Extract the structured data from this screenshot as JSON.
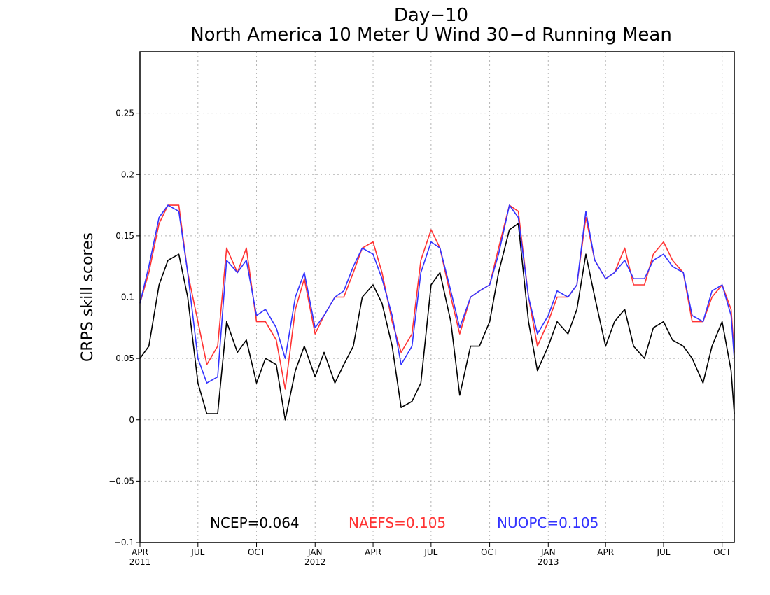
{
  "chart_data": {
    "type": "line",
    "title": "Day−10",
    "subtitle": "North America 10 Meter U Wind 30−d Running Mean",
    "ylabel": "CRPS skill scores",
    "xlabel": "",
    "ylim": [
      -0.1,
      0.3
    ],
    "yticks": [
      -0.1,
      -0.05,
      0,
      0.05,
      0.1,
      0.15,
      0.2,
      0.25
    ],
    "ytick_labels": [
      "−0.1",
      "−0.05",
      "0",
      "0.05",
      "0.1",
      "0.15",
      "0.2",
      "0.25"
    ],
    "xlim": [
      "2011-04-01",
      "2013-10-20"
    ],
    "xticks": [
      {
        "date": "2011-04-01",
        "label": "APR",
        "year": "2011"
      },
      {
        "date": "2011-07-01",
        "label": "JUL",
        "year": ""
      },
      {
        "date": "2011-10-01",
        "label": "OCT",
        "year": ""
      },
      {
        "date": "2012-01-01",
        "label": "JAN",
        "year": "2012"
      },
      {
        "date": "2012-04-01",
        "label": "APR",
        "year": ""
      },
      {
        "date": "2012-07-01",
        "label": "JUL",
        "year": ""
      },
      {
        "date": "2012-10-01",
        "label": "OCT",
        "year": ""
      },
      {
        "date": "2013-01-01",
        "label": "JAN",
        "year": "2013"
      },
      {
        "date": "2013-04-01",
        "label": "APR",
        "year": ""
      },
      {
        "date": "2013-07-01",
        "label": "JUL",
        "year": ""
      },
      {
        "date": "2013-10-01",
        "label": "OCT",
        "year": ""
      }
    ],
    "grid": true,
    "legend_position": "bottom",
    "x": [
      "2011-04-01",
      "2011-04-15",
      "2011-05-01",
      "2011-05-15",
      "2011-06-01",
      "2011-06-15",
      "2011-07-01",
      "2011-07-15",
      "2011-08-01",
      "2011-08-15",
      "2011-09-01",
      "2011-09-15",
      "2011-10-01",
      "2011-10-15",
      "2011-11-01",
      "2011-11-15",
      "2011-12-01",
      "2011-12-15",
      "2012-01-01",
      "2012-01-15",
      "2012-02-01",
      "2012-02-15",
      "2012-03-01",
      "2012-03-15",
      "2012-04-01",
      "2012-04-15",
      "2012-05-01",
      "2012-05-15",
      "2012-06-01",
      "2012-06-15",
      "2012-07-01",
      "2012-07-15",
      "2012-08-01",
      "2012-08-15",
      "2012-09-01",
      "2012-09-15",
      "2012-10-01",
      "2012-10-15",
      "2012-11-01",
      "2012-11-15",
      "2012-12-01",
      "2012-12-15",
      "2013-01-01",
      "2013-01-15",
      "2013-02-01",
      "2013-02-15",
      "2013-03-01",
      "2013-03-15",
      "2013-04-01",
      "2013-04-15",
      "2013-05-01",
      "2013-05-15",
      "2013-06-01",
      "2013-06-15",
      "2013-07-01",
      "2013-07-15",
      "2013-08-01",
      "2013-08-15",
      "2013-09-01",
      "2013-09-15",
      "2013-10-01",
      "2013-10-15",
      "2013-10-20"
    ],
    "series": [
      {
        "name": "NCEP",
        "color": "#000000",
        "mean_label": "NCEP=0.064",
        "values": [
          0.05,
          0.06,
          0.11,
          0.13,
          0.135,
          0.1,
          0.03,
          0.005,
          0.005,
          0.08,
          0.055,
          0.065,
          0.03,
          0.05,
          0.045,
          0.0,
          0.04,
          0.06,
          0.035,
          0.055,
          0.03,
          0.045,
          0.06,
          0.1,
          0.11,
          0.095,
          0.06,
          0.01,
          0.015,
          0.03,
          0.11,
          0.12,
          0.08,
          0.02,
          0.06,
          0.06,
          0.08,
          0.12,
          0.155,
          0.16,
          0.08,
          0.04,
          0.06,
          0.08,
          0.07,
          0.09,
          0.135,
          0.1,
          0.06,
          0.08,
          0.09,
          0.06,
          0.05,
          0.075,
          0.08,
          0.065,
          0.06,
          0.05,
          0.03,
          0.06,
          0.08,
          0.04,
          0.005
        ]
      },
      {
        "name": "NAEFS",
        "color": "#ff3333",
        "mean_label": "NAEFS=0.105",
        "values": [
          0.095,
          0.12,
          0.16,
          0.175,
          0.175,
          0.12,
          0.08,
          0.045,
          0.06,
          0.14,
          0.12,
          0.14,
          0.08,
          0.08,
          0.065,
          0.025,
          0.09,
          0.115,
          0.07,
          0.085,
          0.1,
          0.1,
          0.12,
          0.14,
          0.145,
          0.12,
          0.08,
          0.055,
          0.07,
          0.13,
          0.155,
          0.14,
          0.1,
          0.07,
          0.1,
          0.105,
          0.11,
          0.14,
          0.175,
          0.17,
          0.1,
          0.06,
          0.08,
          0.1,
          0.1,
          0.11,
          0.165,
          0.13,
          0.115,
          0.12,
          0.14,
          0.11,
          0.11,
          0.135,
          0.145,
          0.13,
          0.12,
          0.08,
          0.08,
          0.1,
          0.11,
          0.09,
          0.055
        ]
      },
      {
        "name": "NUOPC",
        "color": "#3333ff",
        "mean_label": "NUOPC=0.105",
        "values": [
          0.095,
          0.125,
          0.165,
          0.175,
          0.17,
          0.12,
          0.05,
          0.03,
          0.035,
          0.13,
          0.12,
          0.13,
          0.085,
          0.09,
          0.075,
          0.05,
          0.1,
          0.12,
          0.075,
          0.085,
          0.1,
          0.105,
          0.125,
          0.14,
          0.135,
          0.115,
          0.085,
          0.045,
          0.06,
          0.12,
          0.145,
          0.14,
          0.105,
          0.075,
          0.1,
          0.105,
          0.11,
          0.135,
          0.175,
          0.165,
          0.1,
          0.07,
          0.085,
          0.105,
          0.1,
          0.11,
          0.17,
          0.13,
          0.115,
          0.12,
          0.13,
          0.115,
          0.115,
          0.13,
          0.135,
          0.125,
          0.12,
          0.085,
          0.08,
          0.105,
          0.11,
          0.085,
          0.05
        ]
      }
    ]
  }
}
